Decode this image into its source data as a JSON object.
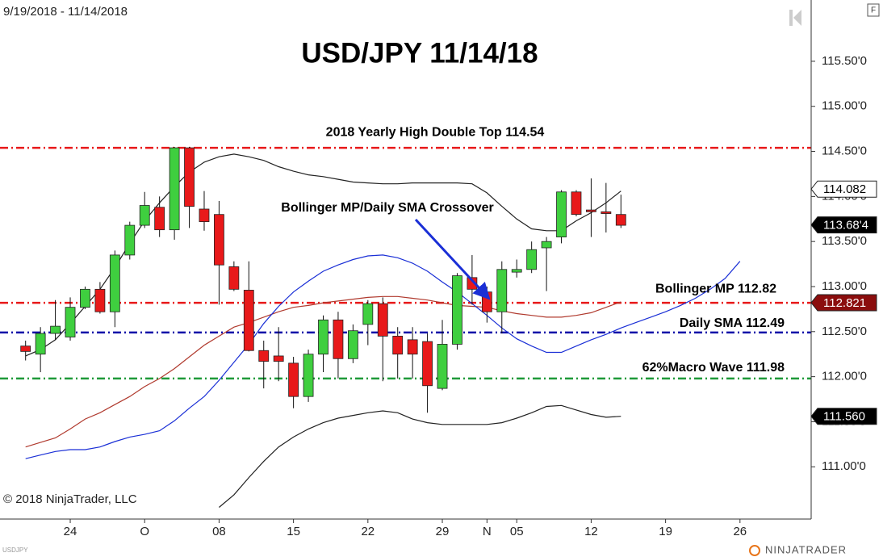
{
  "chart_data": {
    "type": "candlestick",
    "title": "USD/JPY 11/14/18",
    "date_range": "9/19/2018 - 11/14/2018",
    "copyright": "© 2018 NinjaTrader, LLC",
    "symbol": "USDJPY",
    "brand": "NINJATRADER",
    "corner_button": "F",
    "callout": "Bollinger MP/Daily SMA Crossover",
    "categories": [
      null,
      null,
      null,
      "24",
      null,
      null,
      null,
      null,
      "O",
      null,
      null,
      null,
      null,
      "08",
      null,
      null,
      null,
      null,
      "15",
      null,
      null,
      null,
      null,
      "22",
      null,
      null,
      null,
      null,
      "29",
      null,
      null,
      "N",
      null,
      "05",
      null,
      null,
      null,
      null,
      "12",
      null,
      null,
      null,
      null,
      "19",
      null,
      null,
      null,
      null,
      "26",
      null,
      null,
      null,
      null
    ],
    "open": [
      112.34,
      112.25,
      112.48,
      112.44,
      112.77,
      112.97,
      112.72,
      113.35,
      113.68,
      113.88,
      113.63,
      114.54,
      113.86,
      113.8,
      113.22,
      112.96,
      112.29,
      112.23,
      112.15,
      111.78,
      112.25,
      112.63,
      112.2,
      112.58,
      112.81,
      112.45,
      112.41,
      112.39,
      111.87,
      112.36,
      113.1,
      112.94,
      112.72,
      113.16,
      113.19,
      113.43,
      113.55,
      114.05,
      113.85,
      113.83,
      113.8,
      null,
      null,
      null,
      null,
      null,
      null,
      null,
      null,
      null,
      null,
      null,
      null
    ],
    "high": [
      112.4,
      112.55,
      112.85,
      112.88,
      113.0,
      113.05,
      113.4,
      113.72,
      114.05,
      114.0,
      114.55,
      114.55,
      114.06,
      113.95,
      113.28,
      113.28,
      112.4,
      112.55,
      112.22,
      112.3,
      112.68,
      112.72,
      112.58,
      112.85,
      112.88,
      112.55,
      112.55,
      112.48,
      112.63,
      113.15,
      113.35,
      113.0,
      113.28,
      113.3,
      113.5,
      113.55,
      114.07,
      114.07,
      114.2,
      114.15,
      114.02,
      null,
      null,
      null,
      null,
      null,
      null,
      null,
      null,
      null,
      null,
      null,
      null
    ],
    "low": [
      112.18,
      112.05,
      112.41,
      112.4,
      112.75,
      112.7,
      112.55,
      113.3,
      113.65,
      113.55,
      113.52,
      113.65,
      113.62,
      112.8,
      112.95,
      112.28,
      111.87,
      111.95,
      111.65,
      111.72,
      112.05,
      111.98,
      112.15,
      112.35,
      111.95,
      111.98,
      111.98,
      111.6,
      111.85,
      112.3,
      112.8,
      112.6,
      112.48,
      113.1,
      113.15,
      112.95,
      113.48,
      113.78,
      113.55,
      113.6,
      113.65,
      null,
      null,
      null,
      null,
      null,
      null,
      null,
      null,
      null,
      null,
      null,
      null
    ],
    "close": [
      112.28,
      112.48,
      112.56,
      112.77,
      112.97,
      112.72,
      113.35,
      113.68,
      113.9,
      113.63,
      114.54,
      113.89,
      113.72,
      113.24,
      112.97,
      112.29,
      112.17,
      112.17,
      111.78,
      112.25,
      112.63,
      112.2,
      112.51,
      112.81,
      112.45,
      112.25,
      112.25,
      111.9,
      112.36,
      113.12,
      112.97,
      112.72,
      113.19,
      113.19,
      113.41,
      113.5,
      114.05,
      113.8,
      113.83,
      113.81,
      113.68,
      null,
      null,
      null,
      null,
      null,
      null,
      null,
      null,
      null,
      null,
      null,
      null
    ],
    "up_color": "#3fcf3f",
    "down_color": "#e8191a",
    "series": [
      {
        "color": "#222222",
        "values": [
          112.23,
          112.3,
          112.41,
          112.59,
          112.78,
          112.97,
          113.21,
          113.48,
          113.73,
          113.93,
          114.11,
          114.27,
          114.38,
          114.44,
          114.47,
          114.44,
          114.4,
          114.33,
          114.28,
          114.24,
          114.22,
          114.19,
          114.16,
          114.15,
          114.14,
          114.14,
          114.15,
          114.15,
          114.15,
          114.15,
          114.14,
          114.04,
          113.89,
          113.75,
          113.64,
          113.62,
          113.62,
          113.73,
          113.82,
          113.93,
          114.06,
          null,
          null,
          null,
          null,
          null,
          null,
          null,
          null,
          null,
          null,
          null,
          null
        ]
      },
      {
        "color": "#b03a2e",
        "values": [
          111.22,
          111.27,
          111.32,
          111.42,
          111.53,
          111.6,
          111.69,
          111.78,
          111.89,
          111.98,
          112.09,
          112.22,
          112.35,
          112.45,
          112.55,
          112.6,
          112.66,
          112.72,
          112.77,
          112.79,
          112.82,
          112.84,
          112.86,
          112.88,
          112.89,
          112.89,
          112.87,
          112.85,
          112.82,
          112.79,
          112.78,
          112.77,
          112.73,
          112.7,
          112.68,
          112.66,
          112.66,
          112.68,
          112.71,
          112.77,
          112.83,
          null,
          null,
          null,
          null,
          null,
          null,
          null,
          null,
          null,
          null,
          null,
          null
        ]
      },
      {
        "color": "#222222",
        "values": [
          null,
          null,
          null,
          null,
          null,
          null,
          null,
          null,
          null,
          null,
          null,
          null,
          null,
          110.55,
          110.69,
          110.88,
          111.06,
          111.22,
          111.33,
          111.42,
          111.49,
          111.54,
          111.57,
          111.6,
          111.62,
          111.6,
          111.53,
          111.49,
          111.47,
          111.47,
          111.47,
          111.47,
          111.49,
          111.54,
          111.6,
          111.67,
          111.68,
          111.63,
          111.58,
          111.55,
          111.56,
          null,
          null,
          null,
          null,
          null,
          null,
          null,
          null,
          null,
          null,
          null,
          null
        ]
      },
      {
        "color": "#1a2fd6",
        "values": [
          111.09,
          111.13,
          111.17,
          111.19,
          111.19,
          111.22,
          111.28,
          111.33,
          111.36,
          111.4,
          111.51,
          111.65,
          111.78,
          111.96,
          112.16,
          112.36,
          112.59,
          112.78,
          112.94,
          113.06,
          113.17,
          113.24,
          113.3,
          113.34,
          113.35,
          113.32,
          113.26,
          113.17,
          113.05,
          112.94,
          112.81,
          112.68,
          112.54,
          112.42,
          112.34,
          112.27,
          112.27,
          112.34,
          112.41,
          112.47,
          112.54,
          112.6,
          112.66,
          112.72,
          112.79,
          112.87,
          112.97,
          113.09,
          113.28,
          null,
          null,
          null,
          null
        ]
      }
    ],
    "levels": [
      {
        "text": "2018 Yearly High Double Top 114.54",
        "value": 114.54,
        "color": "#e8191a"
      },
      {
        "text": "Bollinger MP 112.82",
        "value": 112.82,
        "color": "#e8191a"
      },
      {
        "text": "Daily SMA 112.49",
        "value": 112.49,
        "color": "#0c0ca8"
      },
      {
        "text": "62%Macro Wave 111.98",
        "value": 111.98,
        "color": "#1f9a3a"
      }
    ],
    "price_markers": [
      {
        "value": 114.082,
        "label": "114.082",
        "fill": "#ffffff",
        "text_color": "#000000"
      },
      {
        "value": 113.684,
        "label": "113.68'4",
        "fill": "#000000",
        "text_color": "#ffffff"
      },
      {
        "value": 112.821,
        "label": "112.821",
        "fill": "#8b0d0d",
        "text_color": "#ffffff"
      },
      {
        "value": 111.56,
        "label": "111.560",
        "fill": "#000000",
        "text_color": "#ffffff"
      }
    ],
    "ylim": [
      110.42,
      116.18
    ],
    "yticks": [
      {
        "value": 111.0,
        "label": "111.00'0"
      },
      {
        "value": 111.5,
        "label": "111.50'0"
      },
      {
        "value": 112.0,
        "label": "112.00'0"
      },
      {
        "value": 112.5,
        "label": "112.50'0"
      },
      {
        "value": 113.0,
        "label": "113.00'0"
      },
      {
        "value": 113.5,
        "label": "113.50'0"
      },
      {
        "value": 114.0,
        "label": "114.00'0"
      },
      {
        "value": 114.5,
        "label": "114.50'0"
      },
      {
        "value": 115.0,
        "label": "115.00'0"
      },
      {
        "value": 115.5,
        "label": "115.50'0"
      }
    ]
  }
}
